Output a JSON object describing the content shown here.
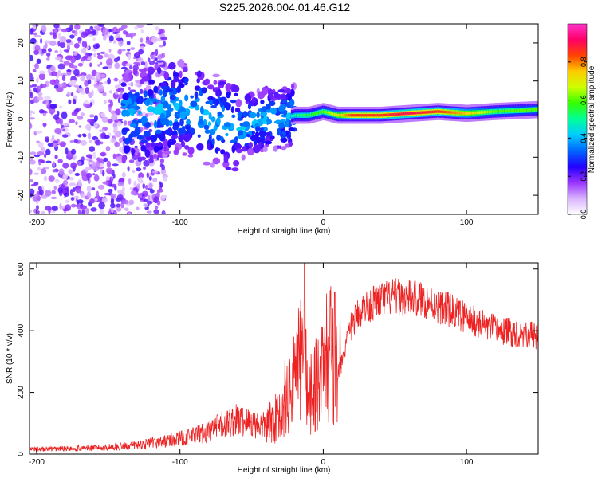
{
  "figure_title": "S225.2026.004.01.46.G12",
  "chart_data": [
    {
      "type": "heatmap",
      "xlabel": "Height of straight line (km)",
      "ylabel": "Frequency (Hz)",
      "xlim": [
        -205,
        150
      ],
      "ylim": [
        -25,
        25
      ],
      "xticks": [
        -200,
        -100,
        0,
        100
      ],
      "yticks": [
        -20,
        -10,
        0,
        10,
        20
      ],
      "colorbar": {
        "label": "Normalized spectral amplitude",
        "range": [
          0,
          1
        ],
        "ticks": [
          0.0,
          0.2,
          0.4,
          0.6,
          0.8
        ],
        "colors": [
          "#ffffff",
          "#d9b3ff",
          "#9933ff",
          "#2200ff",
          "#0066ff",
          "#00ccff",
          "#00ff99",
          "#33ff00",
          "#ccff00",
          "#ffcc00",
          "#ff4400",
          "#ff0066",
          "#ff33cc"
        ]
      },
      "ridge": {
        "description_points_x": [
          -140,
          -120,
          -100,
          -90,
          -80,
          -70,
          -60,
          -50,
          -40,
          -30,
          -20,
          -10,
          0,
          10,
          20,
          40,
          60,
          80,
          100,
          120,
          150
        ],
        "description_points_freq": [
          1,
          1.5,
          3,
          2,
          0,
          -1,
          -3,
          -1,
          0,
          0,
          1,
          1,
          2,
          1,
          1,
          1,
          1.5,
          2,
          1.5,
          2,
          2.5
        ],
        "amplitude": [
          0.15,
          0.2,
          0.3,
          0.3,
          0.3,
          0.25,
          0.25,
          0.25,
          0.25,
          0.3,
          0.5,
          0.55,
          0.6,
          0.7,
          0.85,
          0.85,
          0.9,
          0.85,
          0.75,
          0.6,
          0.6
        ]
      }
    },
    {
      "type": "line",
      "series_name": "SNR",
      "color": "#ee2222",
      "xlabel": "Height of straight line (km)",
      "ylabel": "SNR (10 * v/v)",
      "xlim": [
        -205,
        150
      ],
      "ylim": [
        0,
        620
      ],
      "xticks": [
        -200,
        -100,
        0,
        100
      ],
      "yticks": [
        0,
        200,
        400,
        600
      ],
      "x": [
        -205,
        -180,
        -160,
        -140,
        -120,
        -100,
        -90,
        -80,
        -70,
        -60,
        -50,
        -40,
        -35,
        -30,
        -25,
        -20,
        -15,
        -10,
        -5,
        0,
        5,
        10,
        15,
        20,
        25,
        30,
        40,
        50,
        60,
        70,
        80,
        90,
        100,
        110,
        120,
        130,
        140,
        150
      ],
      "values": [
        15,
        18,
        20,
        25,
        35,
        50,
        60,
        75,
        95,
        110,
        100,
        90,
        110,
        130,
        170,
        250,
        320,
        200,
        230,
        280,
        340,
        260,
        330,
        420,
        460,
        480,
        500,
        510,
        505,
        500,
        480,
        465,
        440,
        420,
        405,
        395,
        390,
        385
      ]
    }
  ]
}
